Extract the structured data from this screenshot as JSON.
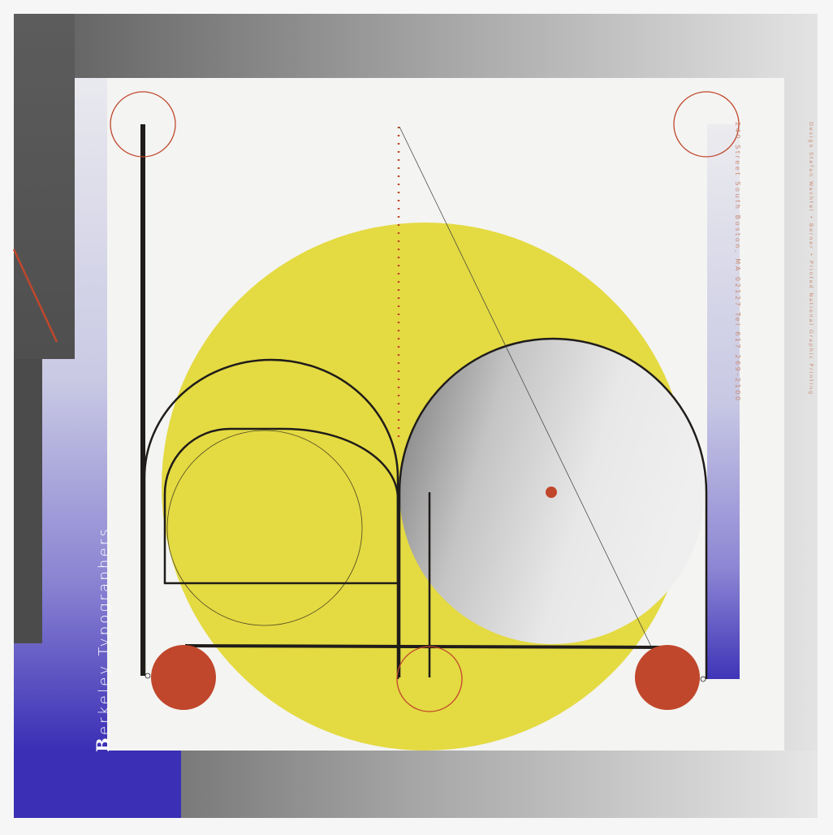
{
  "poster": {
    "brand_initial": "B",
    "brand_rest": "erkeley  Typographers",
    "address_line": "240  Street  South  Boston, MA  02127  Tel  617  269-2100",
    "credit_line": "Design Stefan Wachtel  •  Berner  •  Printed National Graphic Printing",
    "colors": {
      "yellow": "#e4da42",
      "red": "#c0472c",
      "blue": "#3a2fb5",
      "dark_gray": "#4a4a4a",
      "line": "#1f1c1a"
    }
  }
}
